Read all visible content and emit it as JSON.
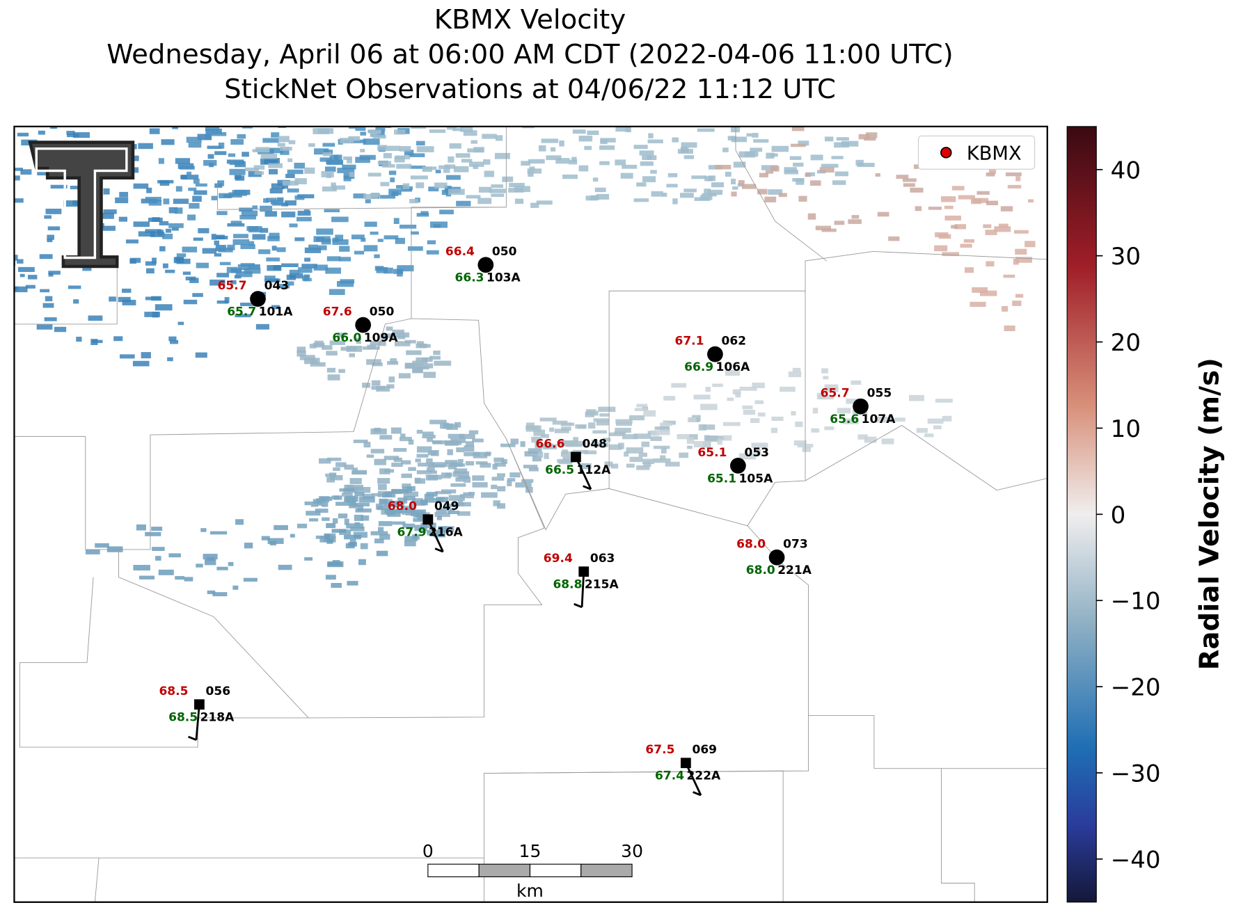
{
  "header": {
    "title": "KBMX Velocity",
    "subtitle": "Wednesday, April 06 at 06:00 AM CDT (2022-04-06 11:00 UTC)",
    "observations": "StickNet Observations at 04/06/22 11:12 UTC"
  },
  "legend": {
    "label": "KBMX"
  },
  "colorbar": {
    "label": "Radial Velocity (m/s)",
    "lim": [
      -45,
      45
    ],
    "ticks": [
      {
        "value": -40,
        "label": "−40"
      },
      {
        "value": -30,
        "label": "−30"
      },
      {
        "value": -20,
        "label": "−20"
      },
      {
        "value": -10,
        "label": "−10"
      },
      0,
      10,
      20,
      30,
      40
    ]
  },
  "scalebar": {
    "ticks": [
      0,
      15,
      30
    ],
    "unit": "km"
  },
  "stations": [
    {
      "id": "101A",
      "temperature": "65.7",
      "dewpoint": "65.7",
      "code": "043"
    },
    {
      "id": "109A",
      "temperature": "67.6",
      "dewpoint": "66.0",
      "code": "050"
    },
    {
      "id": "103A",
      "temperature": "66.4",
      "dewpoint": "66.3",
      "code": "050"
    },
    {
      "id": "106A",
      "temperature": "67.1",
      "dewpoint": "66.9",
      "code": "062"
    },
    {
      "id": "107A",
      "temperature": "65.7",
      "dewpoint": "65.6",
      "code": "055"
    },
    {
      "id": "112A",
      "temperature": "66.6",
      "dewpoint": "66.5",
      "code": "048"
    },
    {
      "id": "105A",
      "temperature": "65.1",
      "dewpoint": "65.1",
      "code": "053"
    },
    {
      "id": "216A",
      "temperature": "68.0",
      "dewpoint": "67.9",
      "code": "049"
    },
    {
      "id": "221A",
      "temperature": "68.0",
      "dewpoint": "68.0",
      "code": "073"
    },
    {
      "id": "215A",
      "temperature": "69.4",
      "dewpoint": "68.8",
      "code": "063"
    },
    {
      "id": "218A",
      "temperature": "68.5",
      "dewpoint": "68.5",
      "code": "056"
    },
    {
      "id": "222A",
      "temperature": "67.5",
      "dewpoint": "67.4",
      "code": "069"
    }
  ]
}
